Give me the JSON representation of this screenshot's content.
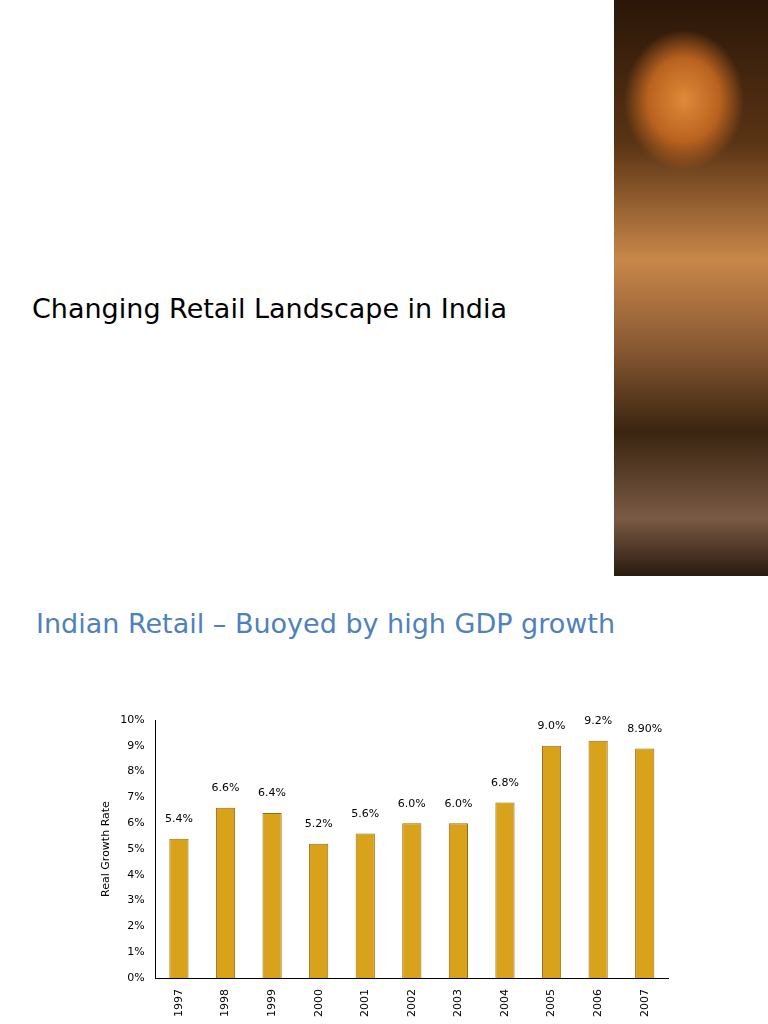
{
  "slide": {
    "title": "Changing Retail Landscape in India"
  },
  "chart_data": {
    "type": "bar",
    "title": "Indian Retail – Buoyed by high GDP growth",
    "y_label": "Real Growth Rate",
    "categories": [
      "1997",
      "1998",
      "1999",
      "2000",
      "2001",
      "2002",
      "2003",
      "2004",
      "2005",
      "2006",
      "2007"
    ],
    "values": [
      5.4,
      6.6,
      6.4,
      5.2,
      5.6,
      6.0,
      6.0,
      6.8,
      9.0,
      9.2,
      8.9
    ],
    "value_labels": [
      "5.4%",
      "6.6%",
      "6.4%",
      "5.2%",
      "5.6%",
      "6.0%",
      "6.0%",
      "6.8%",
      "9.0%",
      "9.2%",
      "8.90%"
    ],
    "data_labels": true,
    "color": "#d9a21b",
    "ylim": [
      0,
      10
    ],
    "yticks": [
      {
        "value": 0,
        "label": "0%"
      },
      {
        "value": 1,
        "label": "1%"
      },
      {
        "value": 2,
        "label": "2%"
      },
      {
        "value": 3,
        "label": "3%"
      },
      {
        "value": 4,
        "label": "4%"
      },
      {
        "value": 5,
        "label": "5%"
      },
      {
        "value": 6,
        "label": "6%"
      },
      {
        "value": 7,
        "label": "7%"
      },
      {
        "value": 8,
        "label": "8%"
      },
      {
        "value": 9,
        "label": "9%"
      },
      {
        "value": 10,
        "label": "10%"
      }
    ],
    "grid": false
  }
}
